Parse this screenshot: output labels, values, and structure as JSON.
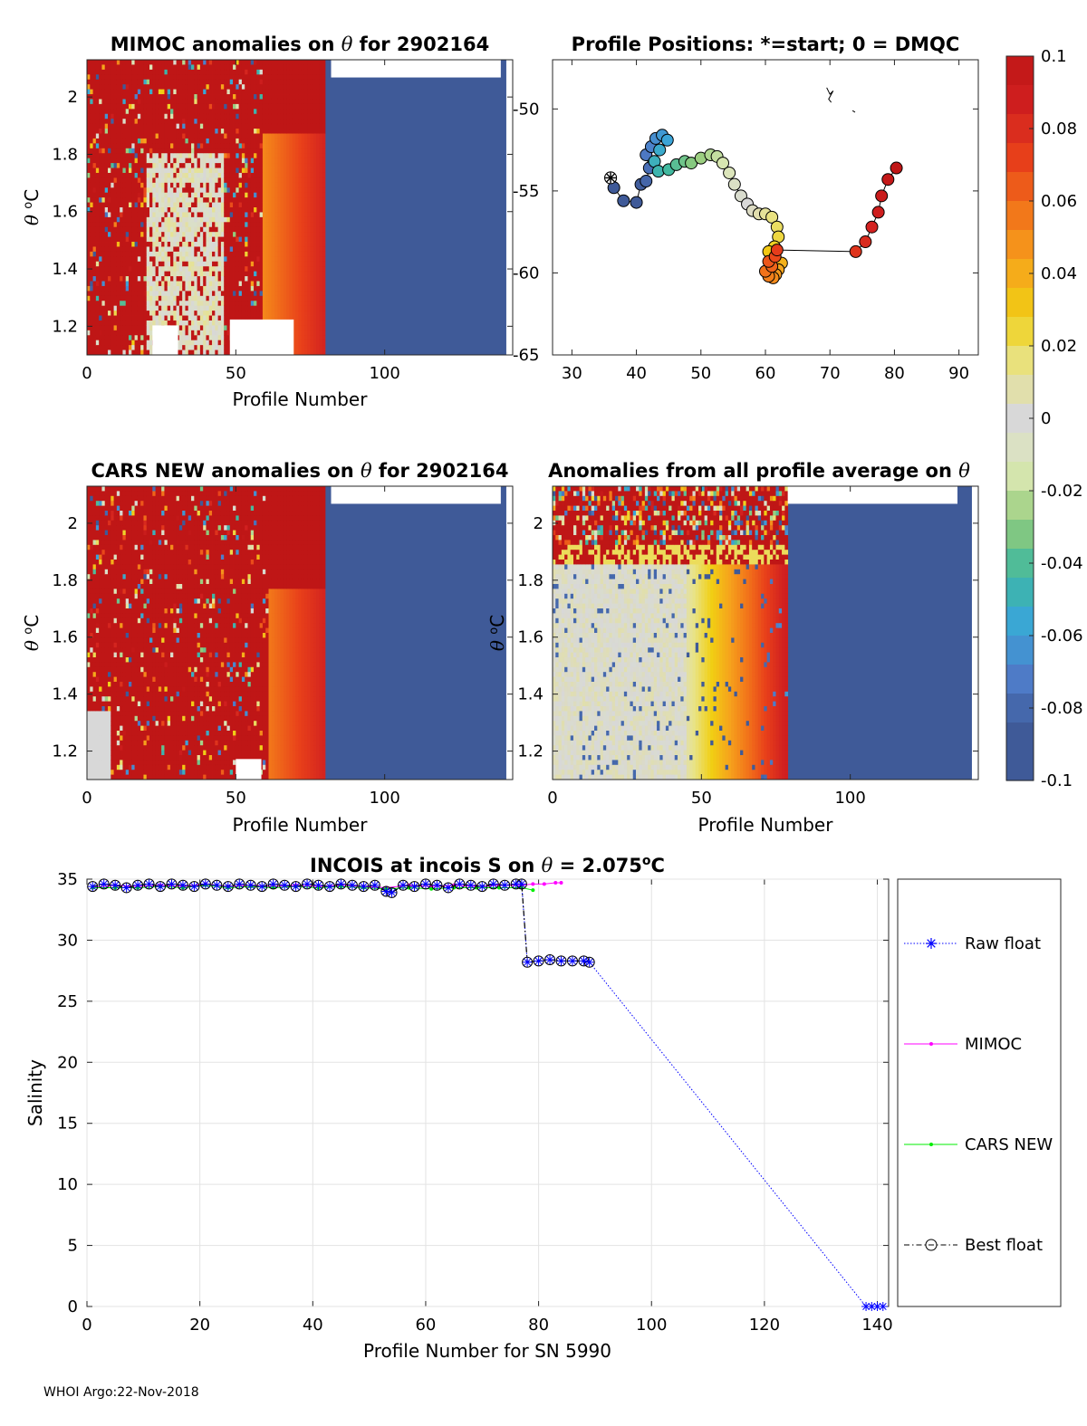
{
  "footer": "WHOI Argo:22-Nov-2018",
  "colorbar": {
    "min": -0.1,
    "max": 0.1,
    "tick_labels": [
      "0.1",
      "0.08",
      "0.06",
      "0.04",
      "0.02",
      "0",
      "-0.02",
      "-0.04",
      "-0.06",
      "-0.08",
      "-0.1"
    ],
    "stops": [
      "#3f5a98",
      "#3f5a98",
      "#4f7cc9",
      "#3aa6d8",
      "#3fb8a0",
      "#93cc7a",
      "#dde8b4",
      "#d8d8d8",
      "#e8e48a",
      "#f1cf14",
      "#f6a31c",
      "#f2741a",
      "#e8401a",
      "#d12020",
      "#bf1616"
    ]
  },
  "chart_data": [
    {
      "id": "mimoc",
      "type": "heatmap",
      "title_pre": "MIMOC anomalies on ",
      "title_sym": "θ",
      "title_post": "  for 2902164",
      "xlabel": "Profile Number",
      "ylabel_sym": "θ",
      "ylabel_unit": "C",
      "xlim": [
        0,
        143
      ],
      "ylim": [
        1.1,
        2.13
      ],
      "xticks": [
        0,
        50,
        100
      ],
      "yticks": [
        1.2,
        1.4,
        1.6,
        1.8,
        2
      ],
      "ytick_labels": [
        "1.2",
        "1.4",
        "1.6",
        "1.8",
        "2"
      ],
      "data_extent_profile": 80,
      "pattern": "noisy red with grey band near profiles 20-45, warming to orange near 60-80, blue beyond 80"
    },
    {
      "id": "positions",
      "type": "scatter",
      "title": "Profile Positions: *=start; 0 = DMQC",
      "xlim": [
        27,
        93
      ],
      "ylim": [
        -65,
        -47
      ],
      "xticks": [
        30,
        40,
        50,
        60,
        70,
        80,
        90
      ],
      "yticks": [
        -65,
        -60,
        -55,
        -50
      ],
      "ytick_labels": [
        "-65",
        "-60",
        "-55",
        "-50"
      ],
      "start": [
        36,
        -54.2
      ],
      "track": [
        [
          36,
          -54.2
        ],
        [
          36.5,
          -54.8
        ],
        [
          38,
          -55.6
        ],
        [
          40,
          -55.7
        ],
        [
          40.7,
          -54.6
        ],
        [
          41.5,
          -54.4
        ],
        [
          42,
          -53.6
        ],
        [
          41.5,
          -52.8
        ],
        [
          42.3,
          -52.3
        ],
        [
          43,
          -51.8
        ],
        [
          44,
          -51.6
        ],
        [
          44.8,
          -51.9
        ],
        [
          43.6,
          -52.5
        ],
        [
          42.8,
          -53.2
        ],
        [
          43.4,
          -53.8
        ],
        [
          45,
          -53.7
        ],
        [
          46.2,
          -53.4
        ],
        [
          47.5,
          -53.2
        ],
        [
          48.5,
          -53.3
        ],
        [
          50,
          -53.0
        ],
        [
          51.5,
          -52.8
        ],
        [
          52.5,
          -52.9
        ],
        [
          53.4,
          -53.3
        ],
        [
          54.4,
          -53.9
        ],
        [
          55.2,
          -54.6
        ],
        [
          56.2,
          -55.3
        ],
        [
          57.2,
          -55.8
        ],
        [
          58,
          -56.2
        ],
        [
          59,
          -56.4
        ],
        [
          60,
          -56.4
        ],
        [
          61,
          -56.6
        ],
        [
          61.8,
          -57.2
        ],
        [
          62,
          -57.8
        ],
        [
          61.4,
          -58.4
        ],
        [
          60.5,
          -58.7
        ],
        [
          61.5,
          -59.2
        ],
        [
          62.5,
          -59.4
        ],
        [
          62,
          -59.8
        ],
        [
          61.6,
          -60.1
        ],
        [
          61.2,
          -60.3
        ],
        [
          60.5,
          -60.2
        ],
        [
          60,
          -59.9
        ],
        [
          61,
          -59.6
        ],
        [
          60.5,
          -59.3
        ],
        [
          61.5,
          -59.0
        ],
        [
          61.8,
          -58.6
        ],
        [
          74,
          -58.7
        ],
        [
          75.5,
          -58.1
        ],
        [
          76.5,
          -57.2
        ],
        [
          77.5,
          -56.3
        ],
        [
          78,
          -55.3
        ],
        [
          79,
          -54.3
        ],
        [
          80.3,
          -53.6
        ]
      ],
      "extra_trace_1": [
        [
          69.5,
          -48.7
        ],
        [
          70,
          -49.1
        ],
        [
          70.5,
          -48.9
        ],
        [
          69.8,
          -49.4
        ],
        [
          70.2,
          -49.6
        ]
      ],
      "extra_trace_2": [
        [
          73.5,
          -50.1
        ],
        [
          73.9,
          -50.2
        ]
      ]
    },
    {
      "id": "cars",
      "type": "heatmap",
      "title_pre": "CARS NEW anomalies on ",
      "title_sym": "θ",
      "title_post": " for 2902164",
      "xlabel": "Profile Number",
      "ylabel_sym": "θ",
      "ylabel_unit": "C",
      "xlim": [
        0,
        143
      ],
      "ylim": [
        1.1,
        2.13
      ],
      "xticks": [
        0,
        50,
        100
      ],
      "yticks": [
        1.2,
        1.4,
        1.6,
        1.8,
        2
      ],
      "ytick_labels": [
        "1.2",
        "1.4",
        "1.6",
        "1.8",
        "2"
      ],
      "data_extent_profile": 80,
      "pattern": "mostly red noise, orange band 60-80, blue beyond 80"
    },
    {
      "id": "allavg",
      "type": "heatmap",
      "title_pre": "Anomalies from all profile average on ",
      "title_sym": "θ",
      "title_post": "",
      "xlabel": "Profile Number",
      "ylabel_sym": "θ",
      "ylabel_unit": "C",
      "xlim": [
        0,
        143
      ],
      "ylim": [
        1.1,
        2.13
      ],
      "xticks": [
        0,
        50,
        100
      ],
      "yticks": [
        1.2,
        1.4,
        1.6,
        1.8,
        2
      ],
      "ytick_labels": [
        "1.2",
        "1.4",
        "1.6",
        "1.8",
        "2"
      ],
      "data_extent_profile": 79,
      "pattern": "grey on left, yellow to orange gradient 45-78, red noisy band near theta 2.0, blue beyond 79"
    },
    {
      "id": "salinity",
      "type": "line",
      "title_pre": "INCOIS at incois S on ",
      "title_sym": "θ",
      "title_post": " = 2.075",
      "title_sup": "o",
      "title_end": "C",
      "xlabel": "Profile Number for SN 5990",
      "ylabel": "Salinity",
      "xlim": [
        0,
        142
      ],
      "ylim": [
        0,
        35
      ],
      "xticks": [
        0,
        20,
        40,
        60,
        80,
        100,
        120,
        140
      ],
      "yticks": [
        0,
        5,
        10,
        15,
        20,
        25,
        30,
        35
      ],
      "legend_position": "right",
      "series": [
        {
          "name": "Raw float",
          "color": "#0000ff",
          "points": [
            [
              1,
              34.4
            ],
            [
              3,
              34.6
            ],
            [
              5,
              34.5
            ],
            [
              7,
              34.3
            ],
            [
              9,
              34.5
            ],
            [
              11,
              34.6
            ],
            [
              13,
              34.4
            ],
            [
              15,
              34.6
            ],
            [
              17,
              34.5
            ],
            [
              19,
              34.4
            ],
            [
              21,
              34.6
            ],
            [
              23,
              34.5
            ],
            [
              25,
              34.4
            ],
            [
              27,
              34.6
            ],
            [
              29,
              34.5
            ],
            [
              31,
              34.4
            ],
            [
              33,
              34.6
            ],
            [
              35,
              34.5
            ],
            [
              37,
              34.4
            ],
            [
              39,
              34.6
            ],
            [
              41,
              34.5
            ],
            [
              43,
              34.4
            ],
            [
              45,
              34.6
            ],
            [
              47,
              34.5
            ],
            [
              49,
              34.4
            ],
            [
              51,
              34.5
            ],
            [
              53,
              34.0
            ],
            [
              54,
              33.9
            ],
            [
              56,
              34.5
            ],
            [
              58,
              34.4
            ],
            [
              60,
              34.6
            ],
            [
              62,
              34.5
            ],
            [
              64,
              34.3
            ],
            [
              66,
              34.6
            ],
            [
              68,
              34.5
            ],
            [
              70,
              34.4
            ],
            [
              72,
              34.6
            ],
            [
              74,
              34.5
            ],
            [
              76,
              34.6
            ],
            [
              77,
              34.6
            ],
            [
              78,
              28.2
            ],
            [
              80,
              28.3
            ],
            [
              82,
              28.4
            ],
            [
              84,
              28.3
            ],
            [
              86,
              28.3
            ],
            [
              88,
              28.3
            ],
            [
              89,
              28.2
            ],
            [
              138,
              0.0
            ],
            [
              139,
              0.0
            ],
            [
              140,
              0.0
            ],
            [
              141,
              0.0
            ]
          ]
        },
        {
          "name": "MIMOC",
          "color": "#ff00ff",
          "points": [
            [
              1,
              34.3
            ],
            [
              5,
              34.5
            ],
            [
              9,
              34.4
            ],
            [
              13,
              34.5
            ],
            [
              17,
              34.4
            ],
            [
              21,
              34.6
            ],
            [
              25,
              34.4
            ],
            [
              29,
              34.5
            ],
            [
              33,
              34.4
            ],
            [
              37,
              34.5
            ],
            [
              41,
              34.4
            ],
            [
              45,
              34.5
            ],
            [
              49,
              34.4
            ],
            [
              53,
              34.3
            ],
            [
              57,
              34.5
            ],
            [
              61,
              34.4
            ],
            [
              65,
              34.5
            ],
            [
              69,
              34.4
            ],
            [
              73,
              34.5
            ],
            [
              77,
              34.5
            ],
            [
              79,
              34.6
            ],
            [
              81,
              34.6
            ],
            [
              83,
              34.7
            ],
            [
              84,
              34.7
            ]
          ]
        },
        {
          "name": "CARS NEW",
          "color": "#00ee00",
          "points": [
            [
              1,
              34.3
            ],
            [
              5,
              34.3
            ],
            [
              9,
              34.3
            ],
            [
              13,
              34.4
            ],
            [
              17,
              34.3
            ],
            [
              21,
              34.5
            ],
            [
              25,
              34.3
            ],
            [
              29,
              34.4
            ],
            [
              33,
              34.3
            ],
            [
              37,
              34.4
            ],
            [
              41,
              34.3
            ],
            [
              45,
              34.4
            ],
            [
              49,
              34.3
            ],
            [
              53,
              34.2
            ],
            [
              57,
              34.3
            ],
            [
              61,
              34.2
            ],
            [
              65,
              34.3
            ],
            [
              69,
              34.3
            ],
            [
              73,
              34.3
            ],
            [
              77,
              34.3
            ],
            [
              79,
              34.1
            ]
          ]
        },
        {
          "name": "Best float",
          "color": "#000000",
          "points": [
            [
              1,
              34.4
            ],
            [
              3,
              34.6
            ],
            [
              5,
              34.5
            ],
            [
              7,
              34.3
            ],
            [
              9,
              34.5
            ],
            [
              11,
              34.6
            ],
            [
              13,
              34.4
            ],
            [
              15,
              34.6
            ],
            [
              17,
              34.5
            ],
            [
              19,
              34.4
            ],
            [
              21,
              34.6
            ],
            [
              23,
              34.5
            ],
            [
              25,
              34.4
            ],
            [
              27,
              34.6
            ],
            [
              29,
              34.5
            ],
            [
              31,
              34.4
            ],
            [
              33,
              34.6
            ],
            [
              35,
              34.5
            ],
            [
              37,
              34.4
            ],
            [
              39,
              34.6
            ],
            [
              41,
              34.5
            ],
            [
              43,
              34.4
            ],
            [
              45,
              34.6
            ],
            [
              47,
              34.5
            ],
            [
              49,
              34.4
            ],
            [
              51,
              34.5
            ],
            [
              53,
              34.0
            ],
            [
              54,
              33.9
            ],
            [
              56,
              34.5
            ],
            [
              58,
              34.4
            ],
            [
              60,
              34.6
            ],
            [
              62,
              34.5
            ],
            [
              64,
              34.3
            ],
            [
              66,
              34.6
            ],
            [
              68,
              34.5
            ],
            [
              70,
              34.4
            ],
            [
              72,
              34.6
            ],
            [
              74,
              34.5
            ],
            [
              76,
              34.6
            ],
            [
              77,
              34.6
            ],
            [
              78,
              28.2
            ],
            [
              80,
              28.3
            ],
            [
              82,
              28.4
            ],
            [
              84,
              28.3
            ],
            [
              86,
              28.3
            ],
            [
              88,
              28.3
            ],
            [
              89,
              28.2
            ]
          ]
        }
      ]
    }
  ]
}
